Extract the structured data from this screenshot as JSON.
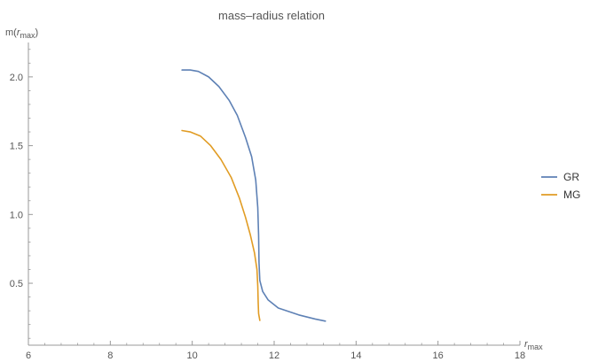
{
  "chart_data": {
    "type": "line",
    "title": "mass–radius relation",
    "xlabel": {
      "main": "r",
      "sub": "max"
    },
    "ylabel": {
      "pre": "m(",
      "main": "r",
      "sub": "max",
      "post": ")"
    },
    "xlim": [
      6,
      18
    ],
    "ylim": [
      0.05,
      2.25
    ],
    "xticks": [
      6,
      8,
      10,
      12,
      14,
      16,
      18
    ],
    "xtick_labels": [
      "6",
      "8",
      "10",
      "12",
      "14",
      "16",
      "18"
    ],
    "yticks": [
      0.5,
      1.0,
      1.5,
      2.0
    ],
    "ytick_labels": [
      "0.5",
      "1.0",
      "1.5",
      "2.0"
    ],
    "grid": false,
    "legend_position": "right",
    "series": [
      {
        "name": "GR",
        "color": "#5e81b5",
        "points": [
          [
            9.75,
            2.05
          ],
          [
            9.95,
            2.05
          ],
          [
            10.15,
            2.04
          ],
          [
            10.4,
            2.0
          ],
          [
            10.65,
            1.93
          ],
          [
            10.9,
            1.83
          ],
          [
            11.1,
            1.72
          ],
          [
            11.3,
            1.56
          ],
          [
            11.45,
            1.42
          ],
          [
            11.55,
            1.25
          ],
          [
            11.6,
            1.05
          ],
          [
            11.62,
            0.85
          ],
          [
            11.63,
            0.65
          ],
          [
            11.65,
            0.52
          ],
          [
            11.72,
            0.44
          ],
          [
            11.85,
            0.38
          ],
          [
            12.1,
            0.32
          ],
          [
            12.6,
            0.27
          ],
          [
            13.0,
            0.24
          ],
          [
            13.25,
            0.225
          ]
        ]
      },
      {
        "name": "MG",
        "color": "#e19c24",
        "points": [
          [
            9.75,
            1.61
          ],
          [
            9.95,
            1.6
          ],
          [
            10.2,
            1.57
          ],
          [
            10.45,
            1.5
          ],
          [
            10.7,
            1.4
          ],
          [
            10.95,
            1.27
          ],
          [
            11.15,
            1.12
          ],
          [
            11.3,
            0.98
          ],
          [
            11.42,
            0.85
          ],
          [
            11.52,
            0.72
          ],
          [
            11.58,
            0.6
          ],
          [
            11.6,
            0.48
          ],
          [
            11.61,
            0.36
          ],
          [
            11.62,
            0.28
          ],
          [
            11.65,
            0.23
          ]
        ]
      }
    ]
  }
}
